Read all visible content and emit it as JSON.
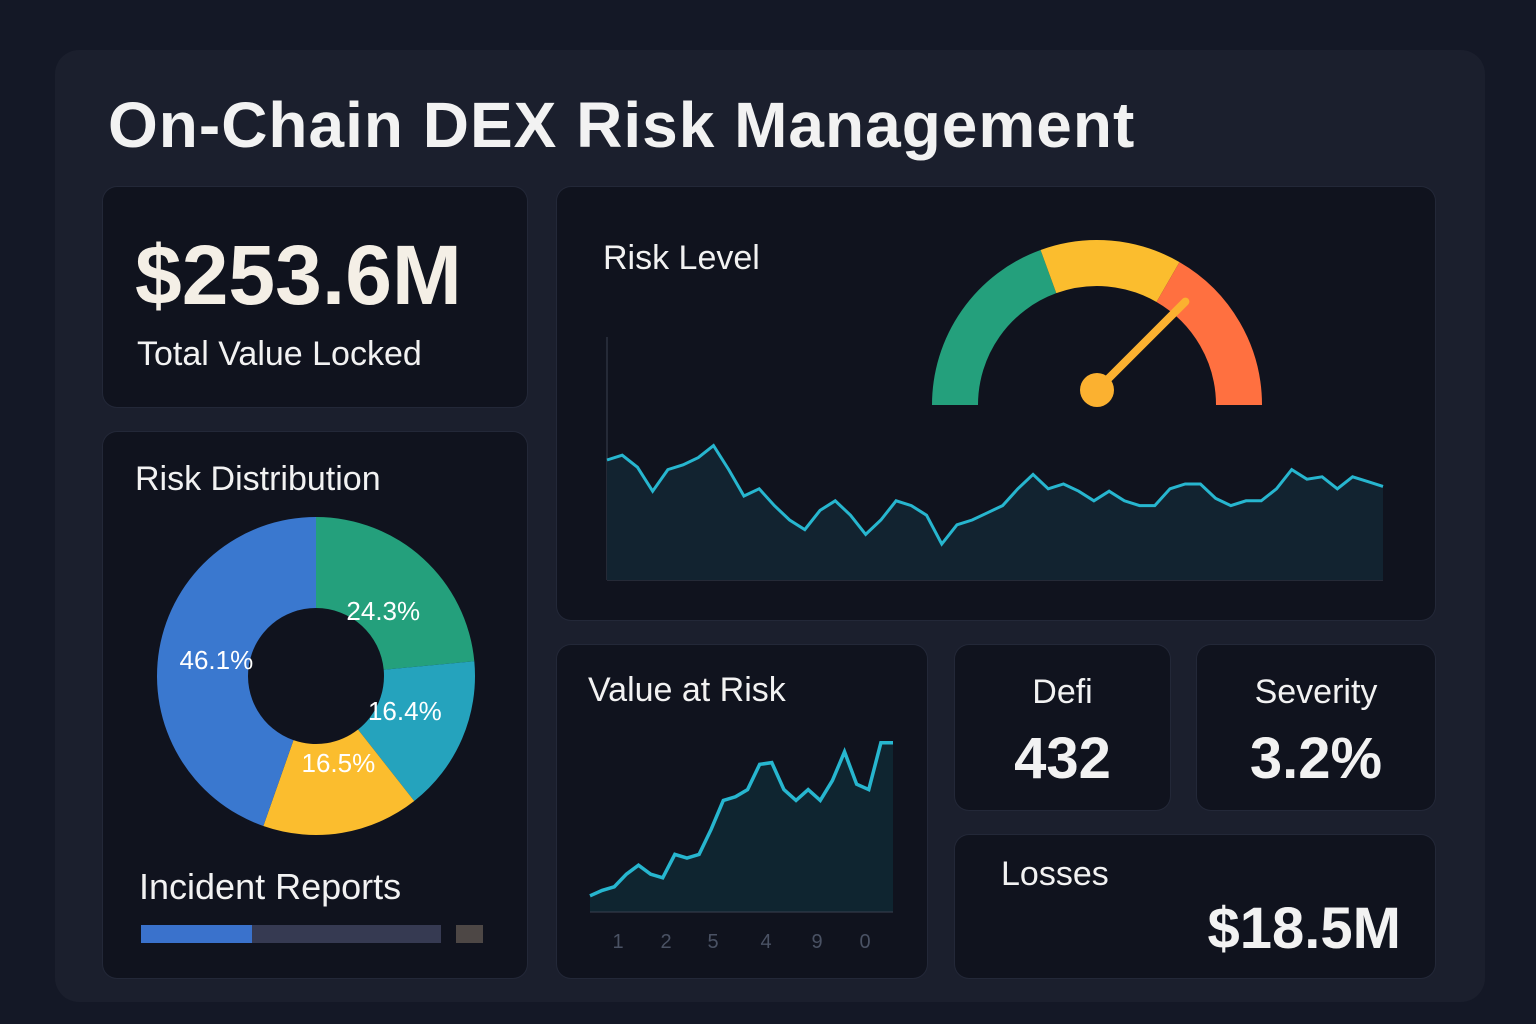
{
  "title": "On-Chain DEX Risk Management",
  "tvl": {
    "value": "$253.6M",
    "label": "Total Value Locked"
  },
  "distribution": {
    "title": "Risk Distribution",
    "slices": [
      {
        "label": "24.3%",
        "value": 24.3,
        "color": "#24a07c"
      },
      {
        "label": "16.4%",
        "value": 16.4,
        "color": "#25a3bd"
      },
      {
        "label": "16.5%",
        "value": 16.5,
        "color": "#fbbd2e"
      },
      {
        "label": "46.1%",
        "value": 46.1,
        "color": "#3a78cf"
      }
    ]
  },
  "incidents": {
    "title": "Incident Reports",
    "progress": 0.37,
    "fill_color": "#3a72cc"
  },
  "risk_level": {
    "title": "Risk Level",
    "gauge_value": 0.75,
    "gauge_colors": [
      "#24a07c",
      "#fbbd2e",
      "#ff7040"
    ],
    "series": [
      50,
      52,
      47,
      37,
      46,
      48,
      51,
      56,
      46,
      35,
      38,
      31,
      25,
      21,
      29,
      33,
      27,
      19,
      25,
      33,
      31,
      27,
      15,
      23,
      25,
      28,
      31,
      38,
      44,
      38,
      40,
      37,
      33,
      37,
      33,
      31,
      31,
      38,
      40,
      40,
      34,
      31,
      33,
      33,
      38,
      46,
      42,
      43,
      38,
      43,
      41,
      39
    ]
  },
  "var": {
    "title": "Value at Risk",
    "x_labels": [
      "1",
      "2",
      "5",
      "4",
      "9",
      "0"
    ],
    "series": [
      9,
      12,
      14,
      21,
      26,
      21,
      19,
      32,
      30,
      32,
      46,
      62,
      64,
      68,
      82,
      83,
      68,
      62,
      68,
      62,
      73,
      89,
      71,
      68,
      94,
      94
    ]
  },
  "defi": {
    "label": "Defi",
    "value": "432"
  },
  "severity": {
    "label": "Severity",
    "value": "3.2%"
  },
  "losses": {
    "label": "Losses",
    "value": "$18.5M"
  }
}
